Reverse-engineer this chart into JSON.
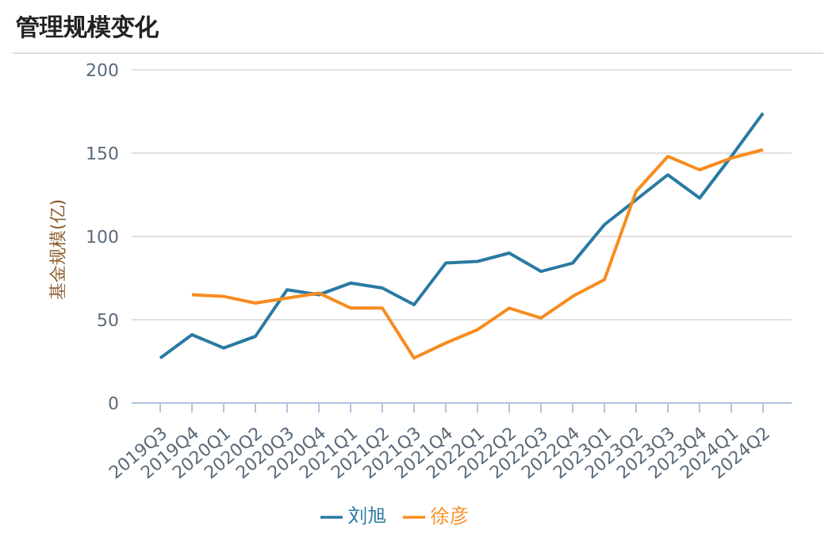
{
  "chart_data": {
    "type": "line",
    "title": "管理规模变化",
    "ylabel": "基金规模(亿)",
    "categories": [
      "2019Q3",
      "2019Q4",
      "2020Q1",
      "2020Q2",
      "2020Q3",
      "2020Q4",
      "2021Q1",
      "2021Q2",
      "2021Q3",
      "2021Q4",
      "2022Q1",
      "2022Q2",
      "2022Q3",
      "2022Q4",
      "2023Q1",
      "2023Q2",
      "2023Q3",
      "2023Q4",
      "2024Q1",
      "2024Q2"
    ],
    "series": [
      {
        "name": "刘旭",
        "color": "#2a7aa3",
        "values": [
          27,
          41,
          33,
          40,
          68,
          65,
          72,
          69,
          59,
          84,
          85,
          90,
          79,
          84,
          107,
          122,
          137,
          123,
          148,
          174
        ]
      },
      {
        "name": "徐彦",
        "color": "#f78c1f",
        "values": [
          null,
          65,
          64,
          60,
          63,
          66,
          57,
          57,
          27,
          36,
          44,
          57,
          51,
          64,
          74,
          127,
          148,
          140,
          147,
          152
        ]
      }
    ],
    "ylim": [
      0,
      200
    ],
    "yticks": [
      0,
      50,
      100,
      150,
      200
    ],
    "grid": "y",
    "legend": "bottom",
    "marker": "none",
    "line_style": "solid"
  }
}
